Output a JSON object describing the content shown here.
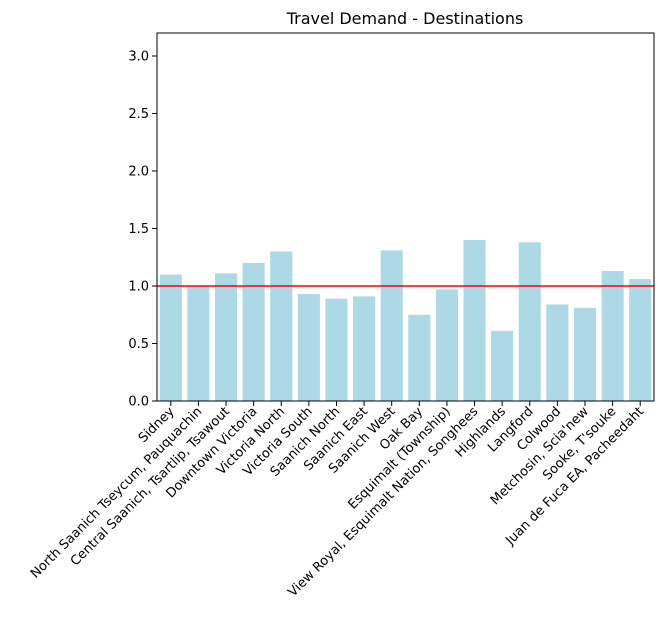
{
  "chart_data": {
    "type": "bar",
    "title": "Travel Demand - Destinations",
    "xlabel": "",
    "ylabel": "",
    "categories": [
      "Sidney",
      "North Saanich Tseycum, Pauquachin",
      "Central Saanich, Tsartlip, Tsawout",
      "Downtown Victoria",
      "Victoria North",
      "Victoria South",
      "Saanich North",
      "Saanich East",
      "Saanich West",
      "Oak Bay",
      "Esquimalt (Township)",
      "View Royal, Esquimalt Nation, Songhees",
      "Highlands",
      "Langford",
      "Colwood",
      "Metchosin, Scia'new",
      "Sooke, T'souke",
      "Juan de Fuca EA, Pacheedaht"
    ],
    "values": [
      1.1,
      1.0,
      1.11,
      1.2,
      1.3,
      0.93,
      0.89,
      0.91,
      1.31,
      0.75,
      0.97,
      1.4,
      0.61,
      1.38,
      0.84,
      0.81,
      1.13,
      1.06
    ],
    "ylim": [
      0,
      3.2
    ],
    "yticks": [
      "0.0",
      "0.5",
      "1.0",
      "1.5",
      "2.0",
      "2.5",
      "3.0"
    ],
    "reference_line": 1.0,
    "grid": false,
    "colors": {
      "bar": "#add8e6",
      "reference_line": "#ff0000",
      "axis": "#000000"
    }
  }
}
